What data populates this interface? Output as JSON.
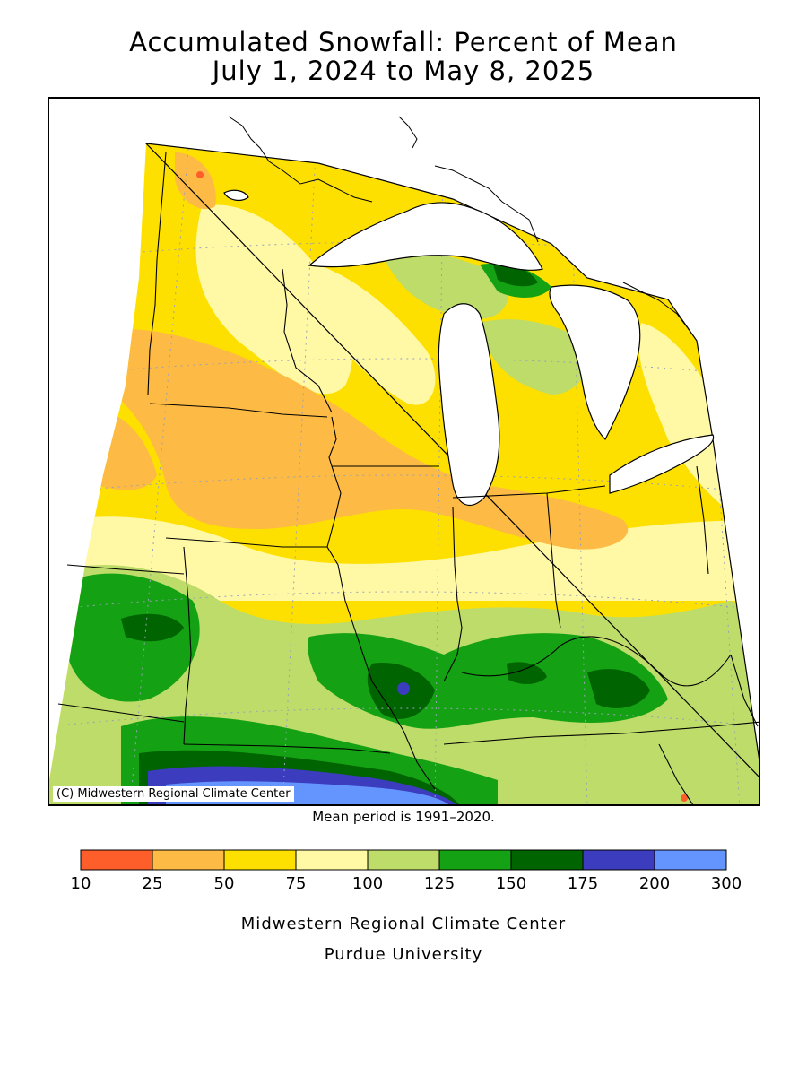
{
  "title": {
    "line1": "Accumulated Snowfall: Percent of Mean",
    "line2": "July 1, 2024 to May 8, 2025"
  },
  "map": {
    "region": "Midwest United States",
    "copyright": "(C) Midwestern Regional Climate Center",
    "lake_color": "#ffffff",
    "border_color": "#000000"
  },
  "mean_period": "Mean period is 1991–2020.",
  "legend": {
    "ticks": [
      "10",
      "25",
      "50",
      "75",
      "100",
      "125",
      "150",
      "175",
      "200",
      "300"
    ],
    "bins": [
      {
        "range": [
          10,
          25
        ],
        "color": "#fe5e2a"
      },
      {
        "range": [
          25,
          50
        ],
        "color": "#fdba44"
      },
      {
        "range": [
          50,
          75
        ],
        "color": "#fde000"
      },
      {
        "range": [
          75,
          100
        ],
        "color": "#fff9a6"
      },
      {
        "range": [
          100,
          125
        ],
        "color": "#bedc6a"
      },
      {
        "range": [
          125,
          150
        ],
        "color": "#14a114"
      },
      {
        "range": [
          150,
          175
        ],
        "color": "#006400"
      },
      {
        "range": [
          175,
          200
        ],
        "color": "#3c3cbe"
      },
      {
        "range": [
          200,
          300
        ],
        "color": "#6495ff"
      }
    ]
  },
  "footer": {
    "line1": "Midwestern Regional Climate Center",
    "line2": "Purdue University"
  }
}
